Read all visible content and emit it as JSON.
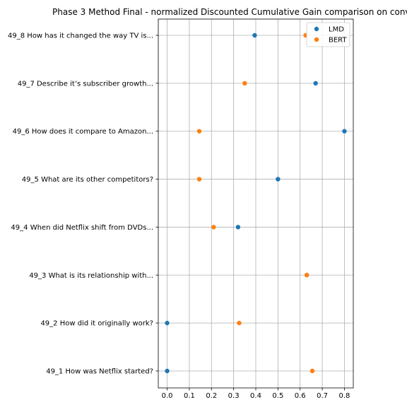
{
  "chart_data": {
    "type": "scatter",
    "title": "Phase 3 Method Final - normalized Discounted Cumulative Gain comparison on conv",
    "xlabel": "",
    "ylabel": "",
    "xlim": [
      -0.04,
      0.84
    ],
    "xticks": [
      0.0,
      0.1,
      0.2,
      0.3,
      0.4,
      0.5,
      0.6,
      0.7,
      0.8
    ],
    "xtick_labels": [
      "0.0",
      "0.1",
      "0.2",
      "0.3",
      "0.4",
      "0.5",
      "0.6",
      "0.7",
      "0.8"
    ],
    "grid": true,
    "legend_position": "top-right",
    "categories": [
      "49_1 How was Netflix started?",
      "49_2 How did it originally work?",
      "49_3 What is its relationship with...",
      "49_4 When did Netflix shift from DVDs...",
      "49_5 What are its other competitors?",
      "49_6 How does it compare to Amazon...",
      "49_7 Describe it’s subscriber growth...",
      "49_8 How has it changed the way TV is..."
    ],
    "series": [
      {
        "name": "LMD",
        "color": "#1f77b4",
        "values": [
          0.0,
          0.0,
          0.63,
          0.32,
          0.5,
          0.8,
          0.67,
          0.395
        ]
      },
      {
        "name": "BERT",
        "color": "#ff7f0e",
        "values": [
          0.655,
          0.325,
          0.63,
          0.21,
          0.145,
          0.145,
          0.35,
          0.625
        ]
      }
    ]
  }
}
